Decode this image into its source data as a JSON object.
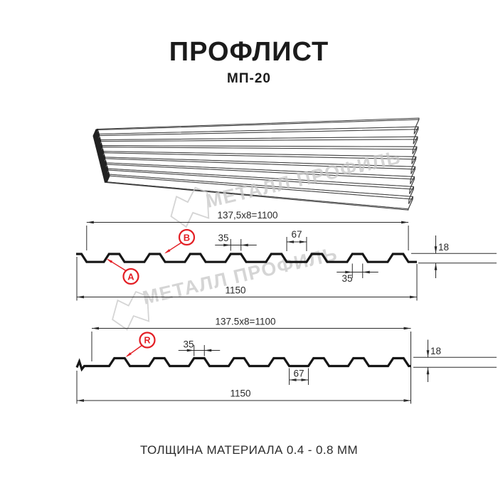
{
  "header": {
    "title": "ПРОФЛИСТ",
    "subtitle": "МП-20"
  },
  "watermark": {
    "brand": "МЕТАЛЛ ПРОФИЛЬ"
  },
  "profile_a": {
    "working_width": "137,5x8=1100",
    "overall_width": "1150",
    "rib_top_width": "35",
    "valley_width": "67",
    "profile_height": "18",
    "edge_rib_width": "35",
    "marker_a": "A",
    "marker_b": "B"
  },
  "profile_r": {
    "working_width": "137.5x8=1100",
    "overall_width": "1150",
    "rib_top_width": "35",
    "valley_width": "67",
    "profile_height": "18",
    "marker_r": "R"
  },
  "footer": {
    "thickness_note": "ТОЛЩИНА МАТЕРИАЛА 0.4 - 0.8 ММ"
  },
  "colors": {
    "accent_red": "#e31e24",
    "line_black": "#161616",
    "dim_gray": "#2b2b2b",
    "watermark_gray": "#c7c7c7"
  }
}
